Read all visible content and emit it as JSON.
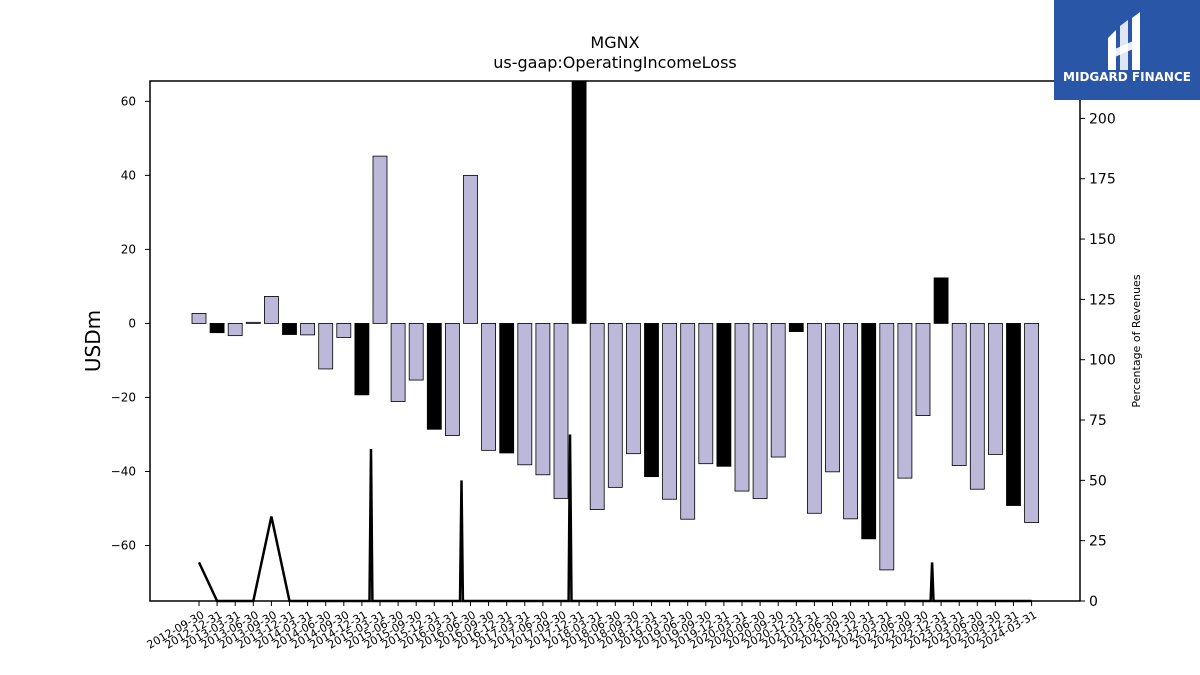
{
  "brand": {
    "name": "MIDGARD FINANCE",
    "bg_color": "#2a56a8"
  },
  "chart_data": {
    "type": "bar",
    "title": "MGNX",
    "subtitle": "us-gaap:OperatingIncomeLoss",
    "ylabel": "USDm",
    "y2label": "Percentage of Revenues",
    "ylim": [
      -75,
      65.5
    ],
    "y2lim": [
      0,
      215.5
    ],
    "yticks": [
      -60,
      -40,
      -20,
      0,
      20,
      40,
      60
    ],
    "y2ticks": [
      0,
      25,
      50,
      75,
      100,
      125,
      150,
      175,
      200
    ],
    "colors": {
      "quarter_bar": "#bcb8d9",
      "annual_bar": "#000000",
      "line": "#000000"
    },
    "categories": [
      "2012-09-30",
      "2012-12-31",
      "2013-03-31",
      "2013-06-30",
      "2013-09-30",
      "2013-12-31",
      "2014-03-31",
      "2014-06-30",
      "2014-09-30",
      "2014-12-31",
      "2015-03-31",
      "2015-06-30",
      "2015-09-30",
      "2015-12-31",
      "2016-03-31",
      "2016-06-30",
      "2016-09-30",
      "2016-12-31",
      "2017-03-31",
      "2017-06-30",
      "2017-09-30",
      "2017-12-31",
      "2018-03-31",
      "2018-06-30",
      "2018-09-30",
      "2018-12-31",
      "2019-03-31",
      "2019-06-30",
      "2019-09-30",
      "2019-12-31",
      "2020-03-31",
      "2020-06-30",
      "2020-09-30",
      "2020-12-31",
      "2021-03-31",
      "2021-06-30",
      "2021-09-30",
      "2021-12-31",
      "2022-03-31",
      "2022-06-30",
      "2022-09-30",
      "2022-12-31",
      "2023-03-31",
      "2023-06-30",
      "2023-09-30",
      "2023-12-31",
      "2024-03-31"
    ],
    "series": [
      {
        "kind": "bar",
        "values": [
          2.7,
          -2.5,
          -3.3,
          0.3,
          7.3,
          -3.0,
          -3.1,
          -12.3,
          -3.8,
          -19.3,
          45.2,
          -21.1,
          -15.3,
          -28.6,
          -30.3,
          40.0,
          -34.3,
          -35.0,
          -38.2,
          -40.9,
          -47.3,
          65.5,
          -50.3,
          -44.3,
          -35.2,
          -41.4,
          -47.5,
          -52.9,
          -37.9,
          -38.6,
          -45.3,
          -47.3,
          -36.1,
          -2.2,
          -51.3,
          -40.1,
          -52.8,
          -58.2,
          -66.6,
          -41.8,
          -24.9,
          12.3,
          -38.4,
          -44.8,
          -35.4,
          -49.2,
          -53.8
        ],
        "annual": [
          false,
          true,
          false,
          false,
          false,
          true,
          false,
          false,
          false,
          true,
          false,
          false,
          false,
          true,
          false,
          false,
          false,
          true,
          false,
          false,
          false,
          true,
          false,
          false,
          false,
          true,
          false,
          false,
          false,
          true,
          false,
          false,
          false,
          true,
          false,
          false,
          false,
          true,
          false,
          false,
          false,
          true,
          false,
          false,
          false,
          true,
          false
        ]
      },
      {
        "kind": "line",
        "axis": "right",
        "values": [
          16,
          0,
          0,
          0,
          35,
          0,
          0,
          0,
          0,
          0,
          0,
          0,
          0,
          0,
          0,
          0,
          0,
          0,
          0,
          0,
          0,
          0,
          0,
          0,
          0,
          0,
          0,
          0,
          0,
          0,
          0,
          0,
          0,
          0,
          0,
          0,
          0,
          0,
          0,
          0,
          0,
          0,
          0,
          0,
          0,
          0,
          0
        ],
        "spikes": [
          {
            "at": 9.5,
            "value": 63
          },
          {
            "at": 14.5,
            "value": 50
          },
          {
            "at": 20.5,
            "value": 69
          },
          {
            "at": 40.5,
            "value": 16
          }
        ]
      }
    ]
  }
}
